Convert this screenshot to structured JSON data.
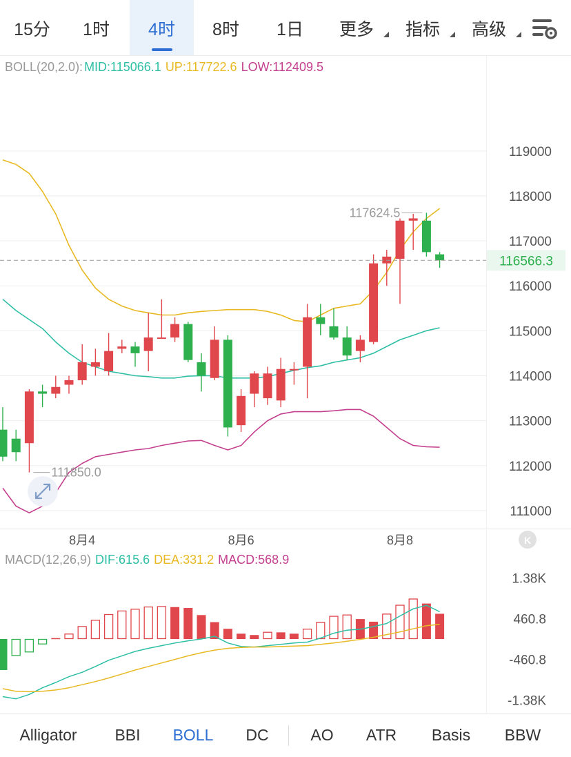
{
  "tabs": [
    {
      "label": "15分",
      "active": false
    },
    {
      "label": "1时",
      "active": false
    },
    {
      "label": "4时",
      "active": true
    },
    {
      "label": "8时",
      "active": false
    },
    {
      "label": "1日",
      "active": false
    },
    {
      "label": "更多",
      "active": false,
      "dropdown": true
    },
    {
      "label": "指标",
      "active": false,
      "dropdown": true
    },
    {
      "label": "高级",
      "active": false,
      "dropdown": true
    }
  ],
  "settings_icon": "chart-settings-icon",
  "boll_legend": {
    "name": "BOLL(20,2.0):",
    "mid": "MID:115066.1",
    "up": "UP:117722.6",
    "low": "LOW:112409.5"
  },
  "macd_legend": {
    "name": "MACD(12,26,9)",
    "dif": "DIF:615.6",
    "dea": "DEA:331.2",
    "macd": "MACD:568.9"
  },
  "colors": {
    "up": "#e0474c",
    "down": "#2db04d",
    "mid": "#2ebfa5",
    "upper": "#e8b923",
    "lower": "#c4408f",
    "dif": "#2ebfa5",
    "dea": "#e8b923",
    "macd": "#c4408f",
    "active": "#2f6fd3",
    "grid": "#eeeeee",
    "axis": "#555555"
  },
  "chart_data": [
    {
      "type": "candlestick",
      "indicator": "BOLL(20,2.0)",
      "y_ticks": [
        111000,
        112000,
        113000,
        114000,
        115000,
        116000,
        117000,
        118000,
        119000
      ],
      "y_range": [
        110600,
        120700
      ],
      "x_labels": [
        "8月4",
        "8月6",
        "8月8"
      ],
      "x_label_at": [
        6,
        18,
        30
      ],
      "current_price": 116566.3,
      "current_price_label": "116566.3",
      "high_marker": {
        "index": 32,
        "value": 117624.5,
        "label": "117624.5"
      },
      "low_marker": {
        "index": 2,
        "value": 111850.0,
        "label": "111850.0"
      },
      "candles": [
        {
          "o": 112800,
          "h": 113300,
          "l": 112100,
          "c": 112200
        },
        {
          "o": 112600,
          "h": 112800,
          "l": 112100,
          "c": 112300
        },
        {
          "o": 112500,
          "h": 113700,
          "l": 111850,
          "c": 113650
        },
        {
          "o": 113650,
          "h": 113800,
          "l": 113300,
          "c": 113600
        },
        {
          "o": 113600,
          "h": 114000,
          "l": 113500,
          "c": 113750
        },
        {
          "o": 113800,
          "h": 114000,
          "l": 113600,
          "c": 113900
        },
        {
          "o": 113900,
          "h": 114700,
          "l": 113800,
          "c": 114300
        },
        {
          "o": 114200,
          "h": 114600,
          "l": 114000,
          "c": 114300
        },
        {
          "o": 114100,
          "h": 114950,
          "l": 114000,
          "c": 114550
        },
        {
          "o": 114600,
          "h": 114800,
          "l": 114500,
          "c": 114650
        },
        {
          "o": 114650,
          "h": 114750,
          "l": 114200,
          "c": 114500
        },
        {
          "o": 114550,
          "h": 115400,
          "l": 114100,
          "c": 114850
        },
        {
          "o": 114850,
          "h": 115700,
          "l": 114850,
          "c": 114850
        },
        {
          "o": 114850,
          "h": 115300,
          "l": 114750,
          "c": 115150
        },
        {
          "o": 115150,
          "h": 115200,
          "l": 114300,
          "c": 114350
        },
        {
          "o": 114300,
          "h": 114500,
          "l": 113650,
          "c": 114000
        },
        {
          "o": 113950,
          "h": 115100,
          "l": 113900,
          "c": 114800
        },
        {
          "o": 114800,
          "h": 114900,
          "l": 112650,
          "c": 112850
        },
        {
          "o": 112900,
          "h": 113700,
          "l": 112750,
          "c": 113550
        },
        {
          "o": 113600,
          "h": 114100,
          "l": 113300,
          "c": 114050
        },
        {
          "o": 113500,
          "h": 114200,
          "l": 113350,
          "c": 114050
        },
        {
          "o": 113450,
          "h": 114400,
          "l": 113300,
          "c": 114150
        },
        {
          "o": 114150,
          "h": 114300,
          "l": 113800,
          "c": 114150
        },
        {
          "o": 114200,
          "h": 115600,
          "l": 113500,
          "c": 115300
        },
        {
          "o": 115300,
          "h": 115600,
          "l": 114900,
          "c": 115150
        },
        {
          "o": 115100,
          "h": 115500,
          "l": 114800,
          "c": 114850
        },
        {
          "o": 114850,
          "h": 115100,
          "l": 114350,
          "c": 114450
        },
        {
          "o": 114550,
          "h": 114900,
          "l": 114300,
          "c": 114800
        },
        {
          "o": 114750,
          "h": 116700,
          "l": 114700,
          "c": 116500
        },
        {
          "o": 116500,
          "h": 116800,
          "l": 116000,
          "c": 116650
        },
        {
          "o": 116600,
          "h": 117500,
          "l": 115600,
          "c": 117450
        },
        {
          "o": 117450,
          "h": 117600,
          "l": 116800,
          "c": 117500
        },
        {
          "o": 117450,
          "h": 117624.5,
          "l": 116650,
          "c": 116750
        },
        {
          "o": 116700,
          "h": 116750,
          "l": 116400,
          "c": 116570
        }
      ],
      "boll_upper": [
        118800,
        118700,
        118500,
        118100,
        117600,
        116900,
        116350,
        115950,
        115700,
        115550,
        115450,
        115400,
        115350,
        115350,
        115400,
        115430,
        115450,
        115470,
        115470,
        115470,
        115430,
        115350,
        115230,
        115200,
        115350,
        115500,
        115550,
        115600,
        115900,
        116300,
        116800,
        117200,
        117500,
        117722.6
      ],
      "boll_mid": [
        115700,
        115450,
        115250,
        115050,
        114750,
        114500,
        114300,
        114200,
        114100,
        114050,
        114000,
        113980,
        113950,
        113950,
        113990,
        114000,
        114000,
        113950,
        113950,
        113950,
        113980,
        114050,
        114120,
        114180,
        114220,
        114300,
        114350,
        114400,
        114500,
        114650,
        114800,
        114900,
        115000,
        115066.1
      ],
      "boll_lower": [
        111500,
        111100,
        110950,
        111100,
        111400,
        111850,
        112050,
        112200,
        112250,
        112300,
        112350,
        112380,
        112450,
        112500,
        112550,
        112560,
        112450,
        112350,
        112450,
        112750,
        113000,
        113150,
        113200,
        113200,
        113200,
        113220,
        113250,
        113250,
        113100,
        112850,
        112600,
        112450,
        112420,
        112409.5
      ]
    },
    {
      "type": "bar",
      "indicator": "MACD(12,26,9)",
      "y_ticks_labels": [
        "1.38K",
        "460.8",
        "-460.8",
        "-1.38K"
      ],
      "y_ticks": [
        1380,
        460.8,
        -460.8,
        -1380
      ],
      "y_range": [
        -1650,
        1650
      ],
      "macd": [
        -700,
        -380,
        -300,
        -120,
        20,
        120,
        290,
        430,
        560,
        640,
        680,
        730,
        740,
        720,
        700,
        540,
        380,
        230,
        120,
        90,
        160,
        150,
        120,
        230,
        380,
        520,
        550,
        450,
        390,
        570,
        770,
        910,
        800,
        568.9
      ],
      "dif": [
        -1300,
        -1350,
        -1250,
        -1100,
        -980,
        -850,
        -750,
        -620,
        -480,
        -380,
        -280,
        -210,
        -150,
        -90,
        -40,
        0,
        60,
        -90,
        -170,
        -180,
        -150,
        -120,
        -90,
        -70,
        20,
        130,
        200,
        220,
        280,
        350,
        520,
        680,
        760,
        615.6
      ],
      "dea": [
        -1120,
        -1180,
        -1190,
        -1180,
        -1150,
        -1100,
        -1030,
        -960,
        -880,
        -790,
        -700,
        -620,
        -540,
        -460,
        -380,
        -310,
        -250,
        -210,
        -190,
        -180,
        -180,
        -170,
        -160,
        -150,
        -120,
        -90,
        -50,
        -10,
        40,
        100,
        160,
        230,
        300,
        331.2
      ]
    }
  ]
}
